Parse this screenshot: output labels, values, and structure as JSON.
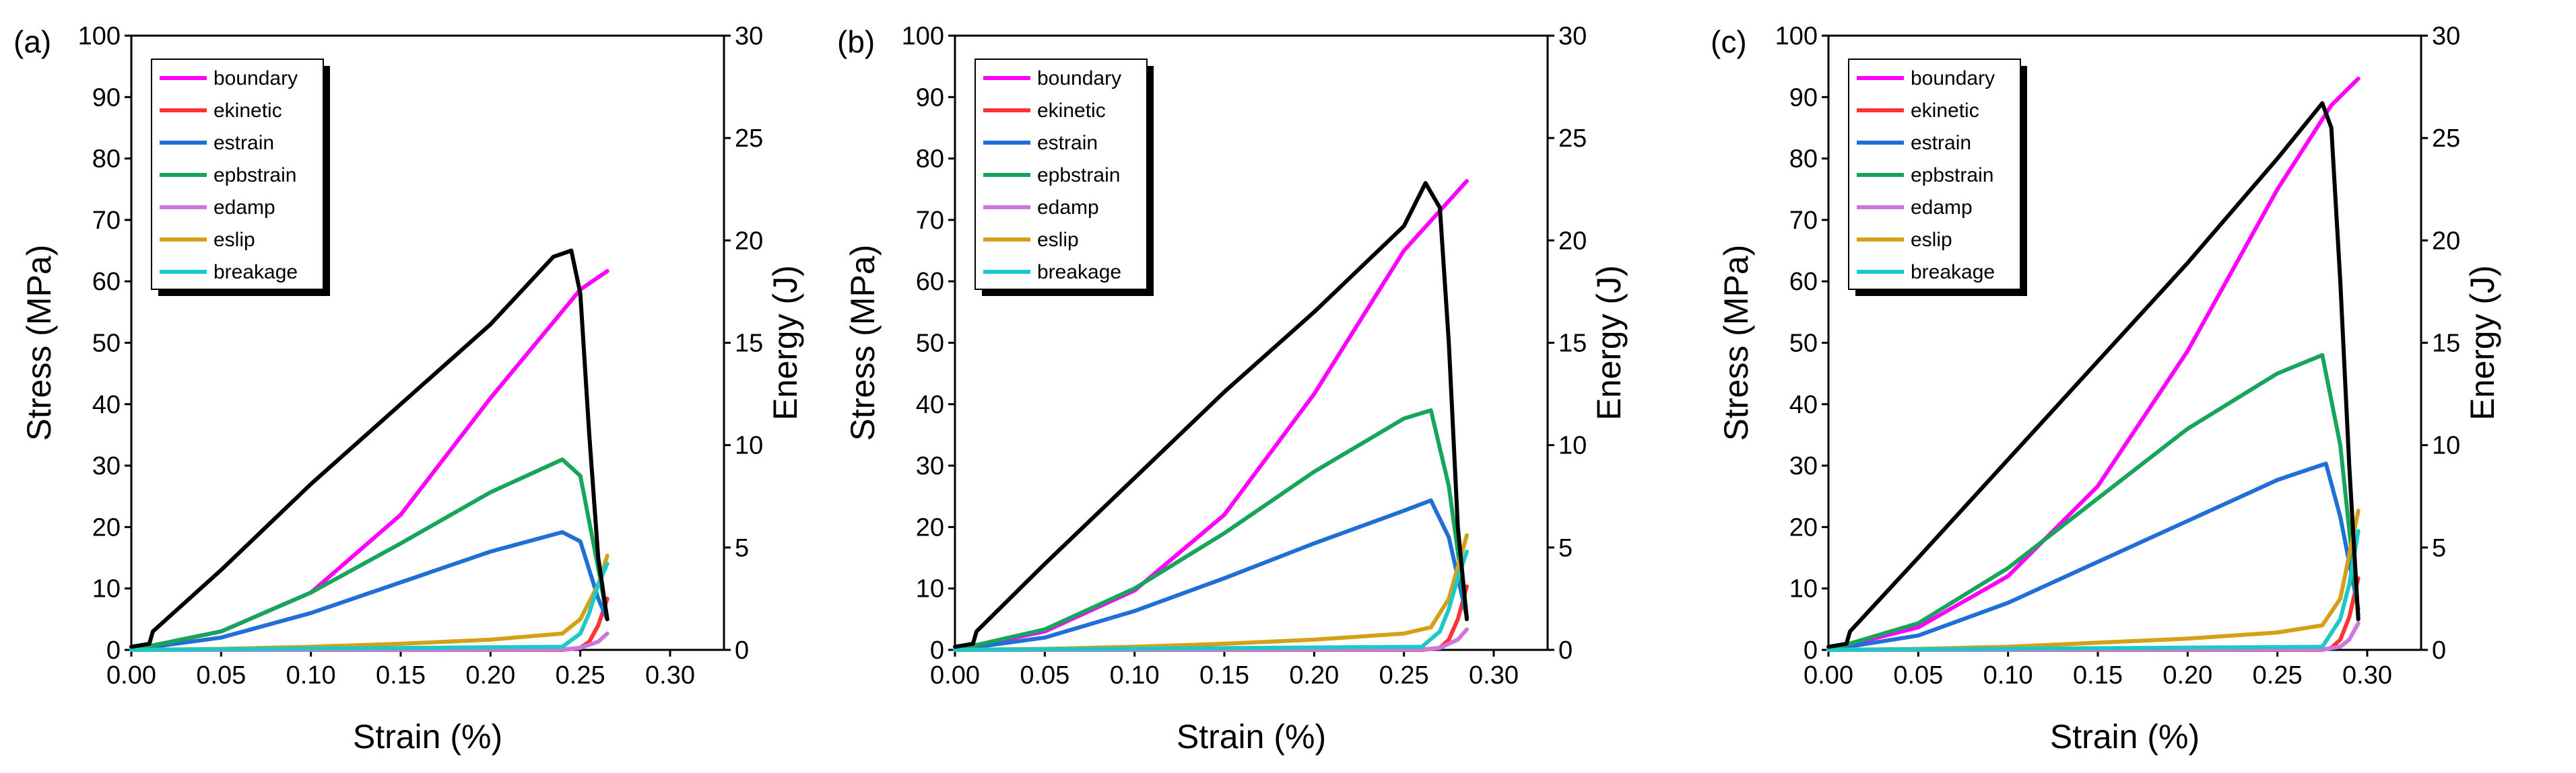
{
  "chart_data": [
    {
      "type": "line",
      "panel_label": "(a)",
      "xlabel": "Strain (%)",
      "ylabel": "Stress (MPa)",
      "y2label": "Energy (J)",
      "xlim": [
        0,
        0.33
      ],
      "ylim": [
        0,
        100
      ],
      "y2lim": [
        0,
        30
      ],
      "xticks": [
        "0.00",
        "0.05",
        "0.10",
        "0.15",
        "0.20",
        "0.25",
        "0.30"
      ],
      "yticks": [
        "0",
        "10",
        "20",
        "30",
        "40",
        "50",
        "60",
        "70",
        "80",
        "90",
        "100"
      ],
      "y2ticks": [
        "0",
        "5",
        "10",
        "15",
        "20",
        "25",
        "30"
      ],
      "legend": [
        "boundary",
        "ekinetic",
        "estrain",
        "epbstrain",
        "edamp",
        "eslip",
        "breakage"
      ],
      "series": [
        {
          "name": "stress",
          "axis": "left",
          "color": "#000000",
          "x": [
            0.0,
            0.01,
            0.012,
            0.05,
            0.1,
            0.15,
            0.2,
            0.235,
            0.245,
            0.25,
            0.255,
            0.26,
            0.265
          ],
          "y": [
            0.5,
            1.0,
            3.0,
            13.0,
            27.0,
            40.0,
            53.0,
            64.0,
            65.0,
            58.0,
            35.0,
            15.0,
            5.0
          ]
        },
        {
          "name": "boundary",
          "axis": "right",
          "color": "#ff00ff",
          "x": [
            0.0,
            0.05,
            0.1,
            0.15,
            0.2,
            0.25,
            0.265
          ],
          "y": [
            0.0,
            0.9,
            2.8,
            6.6,
            12.3,
            17.6,
            18.5
          ]
        },
        {
          "name": "ekinetic",
          "axis": "right",
          "color": "#ff3333",
          "x": [
            0.0,
            0.24,
            0.25,
            0.255,
            0.26,
            0.265
          ],
          "y": [
            0.0,
            0.0,
            0.1,
            0.4,
            1.2,
            2.5
          ]
        },
        {
          "name": "estrain",
          "axis": "right",
          "color": "#1f6fd6",
          "x": [
            0.0,
            0.05,
            0.1,
            0.15,
            0.2,
            0.24,
            0.25,
            0.26,
            0.265
          ],
          "y": [
            0.0,
            0.6,
            1.8,
            3.3,
            4.8,
            5.75,
            5.3,
            2.5,
            1.5
          ]
        },
        {
          "name": "epbstrain",
          "axis": "right",
          "color": "#17a55b",
          "x": [
            0.0,
            0.05,
            0.1,
            0.15,
            0.2,
            0.24,
            0.25,
            0.26,
            0.265
          ],
          "y": [
            0.0,
            0.9,
            2.8,
            5.2,
            7.7,
            9.3,
            8.5,
            4.0,
            1.5
          ]
        },
        {
          "name": "edamp",
          "axis": "right",
          "color": "#cc77dd",
          "x": [
            0.0,
            0.24,
            0.25,
            0.26,
            0.265
          ],
          "y": [
            0.0,
            0.02,
            0.1,
            0.4,
            0.8
          ]
        },
        {
          "name": "eslip",
          "axis": "right",
          "color": "#d4a017",
          "x": [
            0.0,
            0.05,
            0.1,
            0.15,
            0.2,
            0.24,
            0.25,
            0.26,
            0.265
          ],
          "y": [
            0.0,
            0.05,
            0.15,
            0.3,
            0.5,
            0.8,
            1.5,
            3.2,
            4.6
          ]
        },
        {
          "name": "breakage",
          "axis": "right",
          "color": "#1cc8c8",
          "x": [
            0.0,
            0.24,
            0.25,
            0.255,
            0.26,
            0.265
          ],
          "y": [
            0.0,
            0.15,
            0.8,
            1.8,
            3.2,
            4.2
          ]
        }
      ]
    },
    {
      "type": "line",
      "panel_label": "(b)",
      "xlabel": "Strain (%)",
      "ylabel": "Stress (MPa)",
      "y2label": "Energy (J)",
      "xlim": [
        0,
        0.33
      ],
      "ylim": [
        0,
        100
      ],
      "y2lim": [
        0,
        30
      ],
      "xticks": [
        "0.00",
        "0.05",
        "0.10",
        "0.15",
        "0.20",
        "0.25",
        "0.30"
      ],
      "yticks": [
        "0",
        "10",
        "20",
        "30",
        "40",
        "50",
        "60",
        "70",
        "80",
        "90",
        "100"
      ],
      "y2ticks": [
        "0",
        "5",
        "10",
        "15",
        "20",
        "25",
        "30"
      ],
      "legend": [
        "boundary",
        "ekinetic",
        "estrain",
        "epbstrain",
        "edamp",
        "eslip",
        "breakage"
      ],
      "series": [
        {
          "name": "stress",
          "axis": "left",
          "color": "#000000",
          "x": [
            0.0,
            0.01,
            0.012,
            0.05,
            0.1,
            0.15,
            0.2,
            0.25,
            0.262,
            0.27,
            0.275,
            0.28,
            0.285
          ],
          "y": [
            0.5,
            1.0,
            3.0,
            14.0,
            28.0,
            42.0,
            55.0,
            69.0,
            76.0,
            72.0,
            50.0,
            20.0,
            5.0
          ]
        },
        {
          "name": "boundary",
          "axis": "right",
          "color": "#ff00ff",
          "x": [
            0.0,
            0.05,
            0.1,
            0.15,
            0.2,
            0.25,
            0.285
          ],
          "y": [
            0.0,
            0.9,
            2.9,
            6.6,
            12.5,
            19.5,
            22.9
          ]
        },
        {
          "name": "ekinetic",
          "axis": "right",
          "color": "#ff3333",
          "x": [
            0.0,
            0.26,
            0.27,
            0.275,
            0.28,
            0.285
          ],
          "y": [
            0.0,
            0.0,
            0.1,
            0.5,
            1.5,
            3.1
          ]
        },
        {
          "name": "estrain",
          "axis": "right",
          "color": "#1f6fd6",
          "x": [
            0.0,
            0.05,
            0.1,
            0.15,
            0.2,
            0.25,
            0.265,
            0.275,
            0.285
          ],
          "y": [
            0.0,
            0.6,
            1.9,
            3.5,
            5.2,
            6.8,
            7.3,
            5.5,
            1.6
          ]
        },
        {
          "name": "epbstrain",
          "axis": "right",
          "color": "#17a55b",
          "x": [
            0.0,
            0.05,
            0.1,
            0.15,
            0.2,
            0.25,
            0.265,
            0.275,
            0.285
          ],
          "y": [
            0.0,
            1.0,
            3.0,
            5.7,
            8.7,
            11.3,
            11.7,
            8.0,
            1.6
          ]
        },
        {
          "name": "edamp",
          "axis": "right",
          "color": "#cc77dd",
          "x": [
            0.0,
            0.26,
            0.27,
            0.28,
            0.285
          ],
          "y": [
            0.0,
            0.02,
            0.1,
            0.5,
            1.0
          ]
        },
        {
          "name": "eslip",
          "axis": "right",
          "color": "#d4a017",
          "x": [
            0.0,
            0.05,
            0.1,
            0.15,
            0.2,
            0.25,
            0.265,
            0.275,
            0.285
          ],
          "y": [
            0.0,
            0.05,
            0.15,
            0.3,
            0.5,
            0.8,
            1.1,
            2.5,
            5.6
          ]
        },
        {
          "name": "breakage",
          "axis": "right",
          "color": "#1cc8c8",
          "x": [
            0.0,
            0.26,
            0.27,
            0.275,
            0.28,
            0.285
          ],
          "y": [
            0.0,
            0.15,
            0.9,
            2.0,
            3.5,
            4.8
          ]
        }
      ]
    },
    {
      "type": "line",
      "panel_label": "(c)",
      "xlabel": "Strain (%)",
      "ylabel": "Stress (MPa)",
      "y2label": "Energy (J)",
      "xlim": [
        0,
        0.33
      ],
      "ylim": [
        0,
        100
      ],
      "y2lim": [
        0,
        30
      ],
      "xticks": [
        "0.00",
        "0.05",
        "0.10",
        "0.15",
        "0.20",
        "0.25",
        "0.30"
      ],
      "yticks": [
        "0",
        "10",
        "20",
        "30",
        "40",
        "50",
        "60",
        "70",
        "80",
        "90",
        "100"
      ],
      "y2ticks": [
        "0",
        "5",
        "10",
        "15",
        "20",
        "25",
        "30"
      ],
      "legend": [
        "boundary",
        "ekinetic",
        "estrain",
        "epbstrain",
        "edamp",
        "eslip",
        "breakage"
      ],
      "series": [
        {
          "name": "stress",
          "axis": "left",
          "color": "#000000",
          "x": [
            0.0,
            0.01,
            0.012,
            0.05,
            0.1,
            0.15,
            0.2,
            0.25,
            0.275,
            0.28,
            0.285,
            0.29,
            0.295
          ],
          "y": [
            0.5,
            1.0,
            3.0,
            15.0,
            31.0,
            47.0,
            63.0,
            80.0,
            89.0,
            85.0,
            60.0,
            30.0,
            5.0
          ]
        },
        {
          "name": "boundary",
          "axis": "right",
          "color": "#ff00ff",
          "x": [
            0.0,
            0.05,
            0.1,
            0.15,
            0.2,
            0.25,
            0.28,
            0.295
          ],
          "y": [
            0.0,
            1.1,
            3.6,
            8.0,
            14.6,
            22.5,
            26.6,
            27.9
          ]
        },
        {
          "name": "ekinetic",
          "axis": "right",
          "color": "#ff3333",
          "x": [
            0.0,
            0.275,
            0.28,
            0.285,
            0.29,
            0.295
          ],
          "y": [
            0.0,
            0.0,
            0.1,
            0.5,
            1.6,
            3.5
          ]
        },
        {
          "name": "estrain",
          "axis": "right",
          "color": "#1f6fd6",
          "x": [
            0.0,
            0.05,
            0.1,
            0.15,
            0.2,
            0.25,
            0.277,
            0.285,
            0.295
          ],
          "y": [
            0.0,
            0.7,
            2.3,
            4.3,
            6.3,
            8.3,
            9.1,
            6.5,
            2.0
          ]
        },
        {
          "name": "epbstrain",
          "axis": "right",
          "color": "#17a55b",
          "x": [
            0.0,
            0.05,
            0.1,
            0.15,
            0.2,
            0.25,
            0.275,
            0.285,
            0.295
          ],
          "y": [
            0.0,
            1.3,
            4.0,
            7.4,
            10.8,
            13.5,
            14.4,
            10.0,
            1.7
          ]
        },
        {
          "name": "edamp",
          "axis": "right",
          "color": "#cc77dd",
          "x": [
            0.0,
            0.275,
            0.285,
            0.29,
            0.295
          ],
          "y": [
            0.0,
            0.02,
            0.15,
            0.5,
            1.3
          ]
        },
        {
          "name": "eslip",
          "axis": "right",
          "color": "#d4a017",
          "x": [
            0.0,
            0.05,
            0.1,
            0.15,
            0.2,
            0.25,
            0.275,
            0.285,
            0.295
          ],
          "y": [
            0.0,
            0.05,
            0.15,
            0.35,
            0.55,
            0.85,
            1.2,
            2.5,
            6.8
          ]
        },
        {
          "name": "breakage",
          "axis": "right",
          "color": "#1cc8c8",
          "x": [
            0.0,
            0.275,
            0.285,
            0.29,
            0.295
          ],
          "y": [
            0.0,
            0.15,
            1.5,
            3.2,
            5.8
          ]
        }
      ]
    }
  ]
}
